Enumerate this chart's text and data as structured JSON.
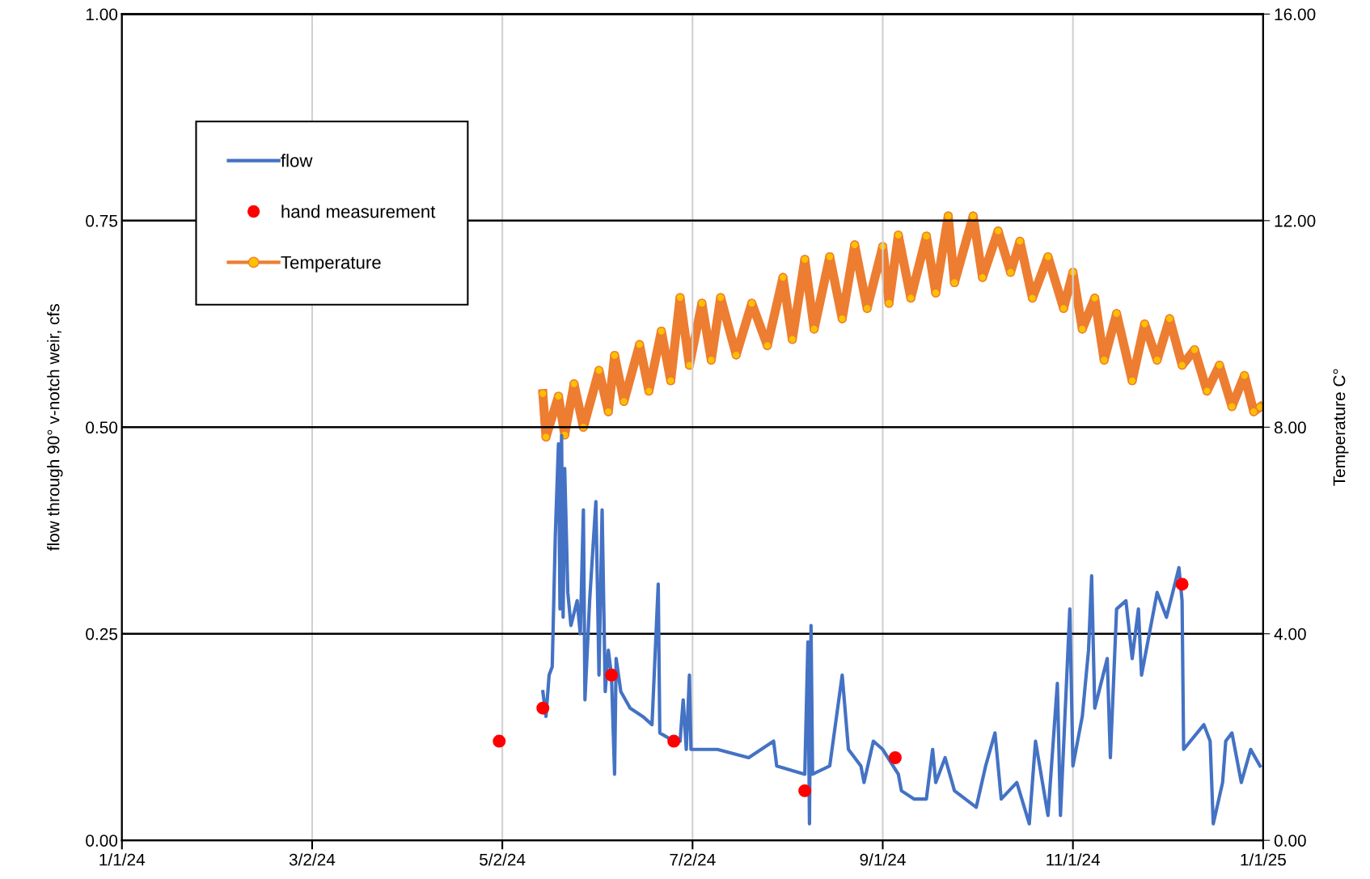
{
  "chart_data": {
    "type": "line",
    "ylabel": "flow through 90° v-notch weir, cfs",
    "y2label": "Temperature C°",
    "xlim": [
      "2024-01-01",
      "2025-01-01"
    ],
    "xticks": [
      {
        "value": "2024-01-01",
        "label": "1/1/24"
      },
      {
        "value": "2024-03-02",
        "label": "3/2/24"
      },
      {
        "value": "2024-05-02",
        "label": "5/2/24"
      },
      {
        "value": "2024-07-02",
        "label": "7/2/24"
      },
      {
        "value": "2024-09-01",
        "label": "9/1/24"
      },
      {
        "value": "2024-11-01",
        "label": "11/1/24"
      },
      {
        "value": "2025-01-01",
        "label": "1/1/25"
      }
    ],
    "ylim": [
      0,
      1
    ],
    "yticks": [
      {
        "value": 0,
        "label": "0.00"
      },
      {
        "value": 0.25,
        "label": "0.25"
      },
      {
        "value": 0.5,
        "label": "0.50"
      },
      {
        "value": 0.75,
        "label": "0.75"
      },
      {
        "value": 1,
        "label": "1.00"
      }
    ],
    "y2lim": [
      0,
      16
    ],
    "y2ticks": [
      {
        "value": 0,
        "label": "0.00"
      },
      {
        "value": 4,
        "label": "4.00"
      },
      {
        "value": 8,
        "label": "8.00"
      },
      {
        "value": 12,
        "label": "12.00"
      },
      {
        "value": 16,
        "label": "16.00"
      }
    ],
    "grid": true,
    "legend": "top left",
    "series": [
      {
        "name": "flow",
        "color": "#4472c4",
        "marker": "none",
        "x": [
          "2024-05-15",
          "2024-05-16",
          "2024-05-17",
          "2024-05-18",
          "2024-05-19",
          "2024-05-20",
          "2024-05-20T12:00",
          "2024-05-21",
          "2024-05-21T12:00",
          "2024-05-22",
          "2024-05-23",
          "2024-05-24",
          "2024-05-26",
          "2024-05-27",
          "2024-05-28",
          "2024-05-28T12:00",
          "2024-05-30",
          "2024-06-01",
          "2024-06-02",
          "2024-06-03",
          "2024-06-04",
          "2024-06-05",
          "2024-06-06",
          "2024-06-07",
          "2024-06-07T12:00",
          "2024-06-09",
          "2024-06-12",
          "2024-06-16",
          "2024-06-19",
          "2024-06-21",
          "2024-06-21T12:00",
          "2024-06-26",
          "2024-06-28",
          "2024-06-29",
          "2024-06-30",
          "2024-07-01",
          "2024-07-01T12:00",
          "2024-07-10",
          "2024-07-20",
          "2024-07-28",
          "2024-07-29",
          "2024-08-07",
          "2024-08-08",
          "2024-08-08T12:00",
          "2024-08-09",
          "2024-08-09T12:00",
          "2024-08-15",
          "2024-08-19",
          "2024-08-21",
          "2024-08-25",
          "2024-08-26",
          "2024-08-29",
          "2024-09-01",
          "2024-09-06",
          "2024-09-07",
          "2024-09-11",
          "2024-09-15",
          "2024-09-17",
          "2024-09-18",
          "2024-09-21",
          "2024-09-24",
          "2024-10-01",
          "2024-10-04",
          "2024-10-07",
          "2024-10-09",
          "2024-10-14",
          "2024-10-18",
          "2024-10-20",
          "2024-10-24",
          "2024-10-27",
          "2024-10-28",
          "2024-10-31",
          "2024-11-01",
          "2024-11-04",
          "2024-11-06",
          "2024-11-07",
          "2024-11-08",
          "2024-11-12",
          "2024-11-13",
          "2024-11-15",
          "2024-11-18",
          "2024-11-20",
          "2024-11-22",
          "2024-11-23",
          "2024-11-27",
          "2024-11-28",
          "2024-12-01",
          "2024-12-05",
          "2024-12-06",
          "2024-12-06T12:00",
          "2024-12-13",
          "2024-12-15",
          "2024-12-16",
          "2024-12-19",
          "2024-12-20",
          "2024-12-22",
          "2024-12-25",
          "2024-12-28",
          "2024-12-31"
        ],
        "values": [
          0.18,
          0.15,
          0.2,
          0.21,
          0.37,
          0.48,
          0.28,
          0.49,
          0.27,
          0.45,
          0.3,
          0.26,
          0.29,
          0.25,
          0.4,
          0.17,
          0.29,
          0.41,
          0.2,
          0.4,
          0.18,
          0.23,
          0.2,
          0.08,
          0.22,
          0.18,
          0.16,
          0.15,
          0.14,
          0.31,
          0.13,
          0.12,
          0.12,
          0.17,
          0.11,
          0.2,
          0.11,
          0.11,
          0.1,
          0.12,
          0.09,
          0.08,
          0.24,
          0.02,
          0.26,
          0.08,
          0.09,
          0.2,
          0.11,
          0.09,
          0.07,
          0.12,
          0.11,
          0.08,
          0.06,
          0.05,
          0.05,
          0.11,
          0.07,
          0.1,
          0.06,
          0.04,
          0.09,
          0.13,
          0.05,
          0.07,
          0.02,
          0.12,
          0.03,
          0.19,
          0.03,
          0.28,
          0.09,
          0.15,
          0.23,
          0.32,
          0.16,
          0.22,
          0.1,
          0.28,
          0.29,
          0.22,
          0.28,
          0.2,
          0.28,
          0.3,
          0.27,
          0.33,
          0.29,
          0.11,
          0.14,
          0.12,
          0.02,
          0.07,
          0.12,
          0.13,
          0.07,
          0.11,
          0.09
        ]
      },
      {
        "name": "hand measurement",
        "type": "scatter",
        "color": "#ff0000",
        "marker": "circle",
        "x": [
          "2024-05-01",
          "2024-05-15",
          "2024-06-06",
          "2024-06-26",
          "2024-08-07",
          "2024-09-05",
          "2024-12-06"
        ],
        "values": [
          0.12,
          0.16,
          0.2,
          0.12,
          0.06,
          0.1,
          0.31
        ]
      },
      {
        "name": "Temperature",
        "axis": "y2",
        "color": "#ed7d31",
        "marker": "circle",
        "x": [
          "2024-05-15",
          "2024-05-16",
          "2024-05-20",
          "2024-05-22",
          "2024-05-25",
          "2024-05-28",
          "2024-06-02",
          "2024-06-05",
          "2024-06-07",
          "2024-06-10",
          "2024-06-15",
          "2024-06-18",
          "2024-06-22",
          "2024-06-25",
          "2024-06-28",
          "2024-07-01",
          "2024-07-05",
          "2024-07-08",
          "2024-07-11",
          "2024-07-16",
          "2024-07-21",
          "2024-07-26",
          "2024-07-31",
          "2024-08-03",
          "2024-08-07",
          "2024-08-10",
          "2024-08-15",
          "2024-08-19",
          "2024-08-23",
          "2024-08-27",
          "2024-09-01",
          "2024-09-03",
          "2024-09-06",
          "2024-09-10",
          "2024-09-15",
          "2024-09-18",
          "2024-09-22",
          "2024-09-24",
          "2024-09-30",
          "2024-10-03",
          "2024-10-08",
          "2024-10-12",
          "2024-10-15",
          "2024-10-19",
          "2024-10-24",
          "2024-10-29",
          "2024-11-01",
          "2024-11-04",
          "2024-11-08",
          "2024-11-11",
          "2024-11-15",
          "2024-11-20",
          "2024-11-24",
          "2024-11-28",
          "2024-12-02",
          "2024-12-06",
          "2024-12-10",
          "2024-12-14",
          "2024-12-18",
          "2024-12-22",
          "2024-12-26",
          "2024-12-29",
          "2024-12-31"
        ],
        "values": [
          8.65,
          7.81,
          8.6,
          7.85,
          8.84,
          8.0,
          9.1,
          8.3,
          9.39,
          8.5,
          9.6,
          8.7,
          9.86,
          8.9,
          10.51,
          9.2,
          10.4,
          9.3,
          10.51,
          9.4,
          10.4,
          9.58,
          10.9,
          9.7,
          11.25,
          9.9,
          11.3,
          10.1,
          11.53,
          10.3,
          11.5,
          10.4,
          11.72,
          10.5,
          11.7,
          10.6,
          12.09,
          10.8,
          12.09,
          10.9,
          11.8,
          11.0,
          11.6,
          10.5,
          11.3,
          10.3,
          11.0,
          9.9,
          10.5,
          9.3,
          10.2,
          8.9,
          10.0,
          9.3,
          10.1,
          9.2,
          9.5,
          8.7,
          9.2,
          8.4,
          9.0,
          8.3,
          8.39
        ]
      }
    ]
  }
}
